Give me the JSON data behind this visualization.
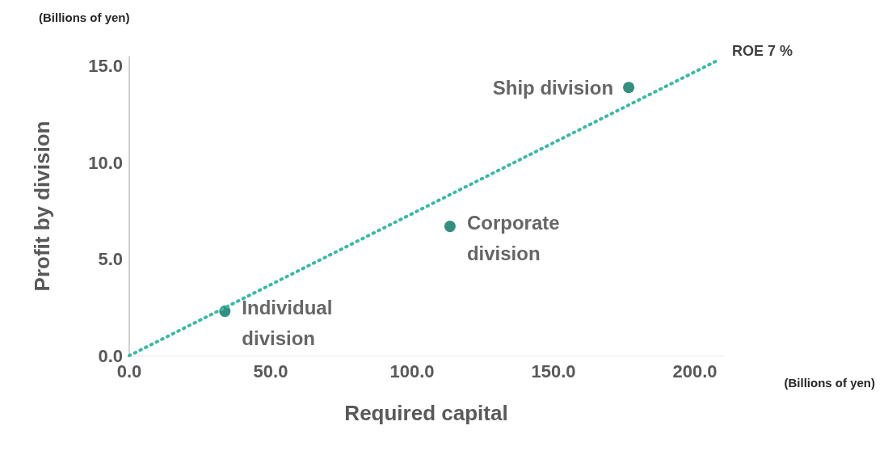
{
  "chart_data": {
    "type": "scatter",
    "xlabel": "Required capital",
    "ylabel": "Profit by division",
    "annotations": [
      "(Billions of yen)",
      "(Billions of yen)"
    ],
    "xlim": [
      0,
      210
    ],
    "xticks": [
      {
        "value": 0,
        "label": "0.0"
      },
      {
        "value": 50,
        "label": "50.0"
      },
      {
        "value": 100,
        "label": "100.0"
      },
      {
        "value": 150,
        "label": "150.0"
      },
      {
        "value": 200,
        "label": "200.0"
      }
    ],
    "ylim": [
      0,
      15.5
    ],
    "yticks": [
      {
        "value": 0,
        "label": "0.0"
      },
      {
        "value": 5,
        "label": "5.0"
      },
      {
        "value": 10,
        "label": "10.0"
      },
      {
        "value": 15,
        "label": "15.0"
      }
    ],
    "grid": false,
    "legend": false,
    "marker": "circle",
    "series": [
      {
        "name": "ROE 7 %",
        "type": "line",
        "color": "#3cb8a8",
        "x": [
          0,
          208
        ],
        "values": [
          0,
          15.3
        ],
        "line_style": "dotted",
        "marker": "none"
      },
      {
        "name": "Individual division",
        "color": "#00735f",
        "x": [
          33.8
        ],
        "values": [
          2.3
        ]
      },
      {
        "name": "Corporate division",
        "color": "#00735f",
        "x": [
          113.4
        ],
        "values": [
          6.7
        ]
      },
      {
        "name": "Ship division",
        "color": "#00735f",
        "x": [
          176.6
        ],
        "values": [
          13.9
        ]
      }
    ]
  }
}
